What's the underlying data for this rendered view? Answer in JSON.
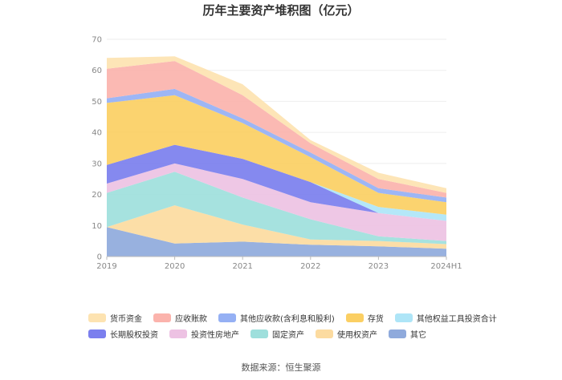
{
  "chart_data": {
    "type": "area",
    "stacked": true,
    "title": "历年主要资产堆积图（亿元）",
    "source": "数据来源：恒生聚源",
    "categories": [
      "2019",
      "2020",
      "2021",
      "2022",
      "2023",
      "2024H1"
    ],
    "ylim": [
      0,
      70
    ],
    "yticks": [
      "0",
      "10",
      "20",
      "30",
      "40",
      "50",
      "60",
      "70"
    ],
    "series": [
      {
        "name": "其它",
        "color": "#8faadc",
        "values": [
          9.5,
          4.2,
          4.8,
          3.8,
          3.3,
          2.5
        ]
      },
      {
        "name": "使用权资产",
        "color": "#fcdba0",
        "values": [
          0,
          12.3,
          5.5,
          1.7,
          1.7,
          1.5
        ]
      },
      {
        "name": "固定资产",
        "color": "#9edfdc",
        "values": [
          11,
          10.8,
          8.7,
          6.5,
          1.5,
          1.0
        ]
      },
      {
        "name": "投资性房地产",
        "color": "#edc2e3",
        "values": [
          3,
          2.7,
          6,
          5.5,
          7.5,
          6.5
        ]
      },
      {
        "name": "长期股权投资",
        "color": "#7b7fee",
        "values": [
          6,
          6,
          6.5,
          6.5,
          0,
          0
        ]
      },
      {
        "name": "其他权益工具投资合计",
        "color": "#aee5f7",
        "values": [
          0,
          0,
          0,
          0,
          2,
          2
        ]
      },
      {
        "name": "存货",
        "color": "#fbcf63",
        "values": [
          20,
          16,
          11.5,
          8,
          4.5,
          4
        ]
      },
      {
        "name": "其他应收款(含利息和股利)",
        "color": "#95b0f4",
        "values": [
          1.5,
          2,
          1.5,
          1.5,
          1.5,
          1.5
        ]
      },
      {
        "name": "应收账款",
        "color": "#fbb3ac",
        "values": [
          9.5,
          9,
          7.5,
          3,
          3,
          1.5
        ]
      },
      {
        "name": "货币资金",
        "color": "#fde3b1",
        "values": [
          3.5,
          1.5,
          3.5,
          1,
          2,
          1.5
        ]
      }
    ],
    "legend_rows": [
      [
        "货币资金",
        "应收账款",
        "其他应收款(含利息和股利)",
        "存货",
        "其他权益工具投资合计"
      ],
      [
        "长期股权投资",
        "投资性房地产",
        "固定资产",
        "使用权资产",
        "其它"
      ]
    ],
    "legend_colors": {
      "货币资金": "#fde3b1",
      "应收账款": "#fbb3ac",
      "其他应收款(含利息和股利)": "#95b0f4",
      "存货": "#fbcf63",
      "其他权益工具投资合计": "#aee5f7",
      "长期股权投资": "#7b7fee",
      "投资性房地产": "#edc2e3",
      "固定资产": "#9edfdc",
      "使用权资产": "#fcdba0",
      "其它": "#8faadc"
    }
  }
}
